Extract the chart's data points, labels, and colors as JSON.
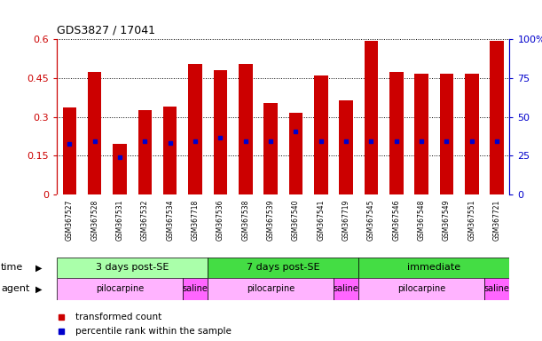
{
  "title": "GDS3827 / 17041",
  "samples": [
    "GSM367527",
    "GSM367528",
    "GSM367531",
    "GSM367532",
    "GSM367534",
    "GSM367718",
    "GSM367536",
    "GSM367538",
    "GSM367539",
    "GSM367540",
    "GSM367541",
    "GSM367719",
    "GSM367545",
    "GSM367546",
    "GSM367548",
    "GSM367549",
    "GSM367551",
    "GSM367721"
  ],
  "red_values": [
    0.335,
    0.475,
    0.195,
    0.325,
    0.34,
    0.505,
    0.48,
    0.505,
    0.355,
    0.315,
    0.46,
    0.365,
    0.595,
    0.475,
    0.465,
    0.465,
    0.465,
    0.595
  ],
  "blue_values": [
    0.195,
    0.205,
    0.145,
    0.205,
    0.2,
    0.205,
    0.22,
    0.205,
    0.205,
    0.245,
    0.205,
    0.205,
    0.205,
    0.205,
    0.205,
    0.205,
    0.205,
    0.205
  ],
  "ylim": [
    0,
    0.6
  ],
  "yticks_left": [
    0,
    0.15,
    0.3,
    0.45,
    0.6
  ],
  "yticks_right_vals": [
    0,
    25,
    50,
    75,
    100
  ],
  "yticks_right_labels": [
    "0",
    "25",
    "50",
    "75",
    "100%"
  ],
  "time_groups": [
    {
      "label": "3 days post-SE",
      "start": 0,
      "end": 5,
      "color": "#AAFFAA"
    },
    {
      "label": "7 days post-SE",
      "start": 6,
      "end": 11,
      "color": "#44DD44"
    },
    {
      "label": "immediate",
      "start": 12,
      "end": 17,
      "color": "#44DD44"
    }
  ],
  "agent_groups": [
    {
      "label": "pilocarpine",
      "start": 0,
      "end": 4,
      "color": "#FFB3FF"
    },
    {
      "label": "saline",
      "start": 5,
      "end": 5,
      "color": "#FF66FF"
    },
    {
      "label": "pilocarpine",
      "start": 6,
      "end": 10,
      "color": "#FFB3FF"
    },
    {
      "label": "saline",
      "start": 11,
      "end": 11,
      "color": "#FF66FF"
    },
    {
      "label": "pilocarpine",
      "start": 12,
      "end": 16,
      "color": "#FFB3FF"
    },
    {
      "label": "saline",
      "start": 17,
      "end": 17,
      "color": "#FF66FF"
    }
  ],
  "bar_color": "#CC0000",
  "blue_color": "#0000CC",
  "left_axis_color": "#CC0000",
  "right_axis_color": "#0000CC",
  "tick_area_color": "#DDDDDD",
  "time_colors": [
    "#AAFFAA",
    "#44DD44",
    "#44DD44"
  ],
  "group_sep_indices": [
    5,
    11
  ]
}
